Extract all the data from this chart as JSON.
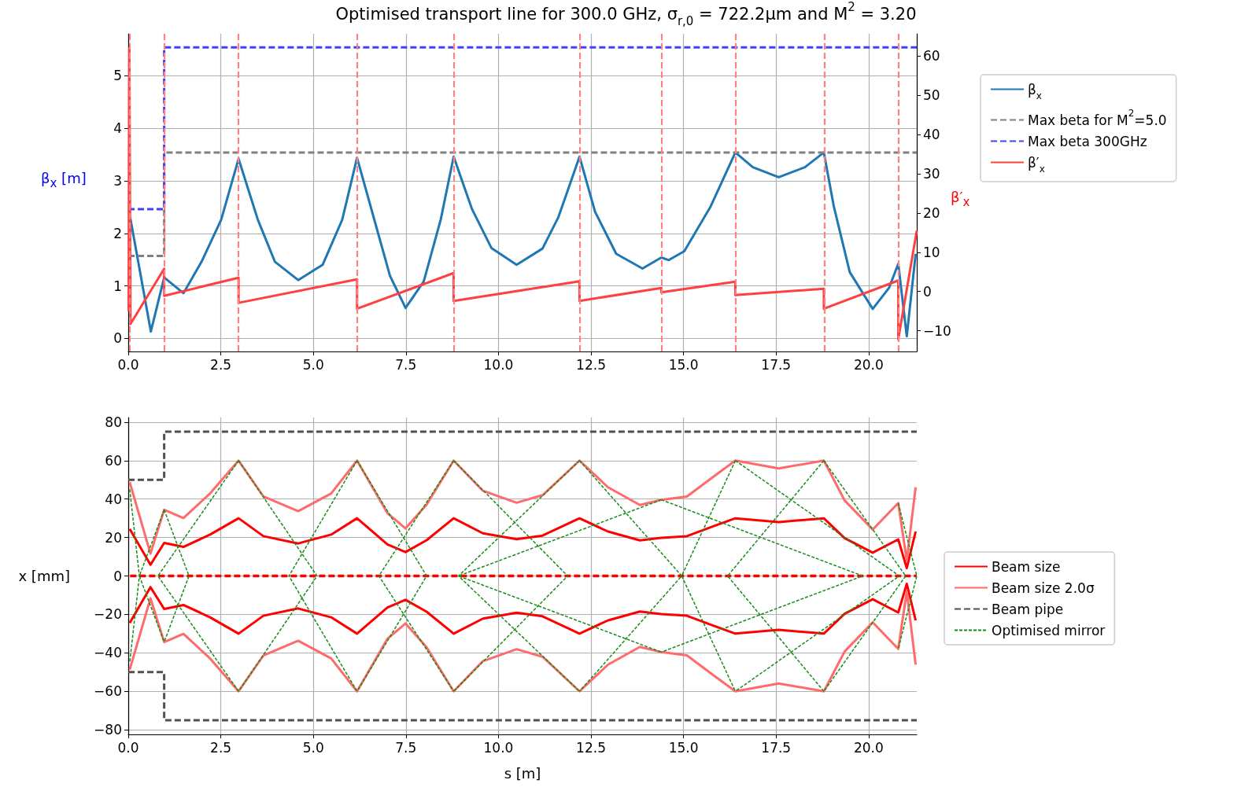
{
  "chart_data": [
    {
      "type": "line",
      "title": "Optimised transport line for 300.0 GHz, σ$_{r,0}$ = 722.2μm and M$^{2}$ = 3.20",
      "ylabel": "β$_{x}$ [m]",
      "y2label": "β′$_{x}$",
      "xlim": [
        0,
        21.3
      ],
      "xticks": [
        {
          "value": 0,
          "label": "0.0"
        },
        {
          "value": 2.5,
          "label": "2.5"
        },
        {
          "value": 5,
          "label": "5.0"
        },
        {
          "value": 7.5,
          "label": "7.5"
        },
        {
          "value": 10,
          "label": "10.0"
        },
        {
          "value": 12.5,
          "label": "12.5"
        },
        {
          "value": 15,
          "label": "15.0"
        },
        {
          "value": 17.5,
          "label": "17.5"
        },
        {
          "value": 20,
          "label": "20.0"
        }
      ],
      "ylim": [
        -0.25,
        5.8
      ],
      "yticks": [
        0,
        1,
        2,
        3,
        4,
        5
      ],
      "y2lim": [
        -15.3,
        65.7
      ],
      "y2ticks": [
        -10,
        0,
        10,
        20,
        30,
        40,
        50,
        60
      ],
      "grid": true,
      "legend": "right",
      "marker": "none",
      "series": [
        {
          "name": "β$_{x}$",
          "color": "#1f77b4",
          "line_style": "solid",
          "x": [
            0.05,
            0.61,
            0.97,
            1.49,
            1.98,
            2.51,
            2.98,
            3.5,
            3.96,
            4.59,
            5.25,
            5.78,
            6.18,
            6.69,
            7.07,
            7.49,
            7.98,
            8.44,
            8.79,
            9.28,
            9.81,
            10.49,
            11.19,
            11.62,
            12.19,
            12.61,
            13.18,
            13.89,
            14.4,
            14.6,
            15.02,
            15.73,
            16.4,
            16.87,
            17.57,
            18.28,
            18.79,
            19.06,
            19.49,
            20.11,
            20.55,
            20.8,
            21.03,
            21.27
          ],
          "values": [
            2.31,
            0.13,
            1.16,
            0.86,
            1.46,
            2.26,
            3.42,
            2.26,
            1.46,
            1.11,
            1.4,
            2.26,
            3.44,
            2.15,
            1.19,
            0.58,
            1.08,
            2.26,
            3.46,
            2.47,
            1.72,
            1.4,
            1.71,
            2.31,
            3.46,
            2.41,
            1.61,
            1.33,
            1.54,
            1.49,
            1.66,
            2.51,
            3.54,
            3.26,
            3.07,
            3.26,
            3.54,
            2.51,
            1.26,
            0.56,
            0.96,
            1.42,
            0.04,
            1.61
          ]
        },
        {
          "name": "Max beta for M$^{2}$=5.0",
          "color": "#808080",
          "line_style": "dashed",
          "x": [
            0,
            0.97,
            0.97,
            21.3
          ],
          "values": [
            1.57,
            1.57,
            3.54,
            3.54
          ]
        },
        {
          "name": "Max beta 300GHz",
          "color": "#4040ff",
          "line_style": "dashed",
          "x": [
            0,
            0.97,
            0.97,
            21.3
          ],
          "values": [
            2.46,
            2.46,
            5.54,
            5.54
          ]
        },
        {
          "name": "β′$_{x}$",
          "color": "#ff4040",
          "line_style": "solid",
          "axis": "y2",
          "x": [
            0.01,
            0.03,
            0.06,
            0.97,
            0.97,
            2.98,
            2.98,
            6.18,
            6.18,
            8.79,
            8.79,
            12.19,
            12.19,
            14.4,
            14.4,
            16.4,
            16.4,
            18.79,
            18.79,
            20.8,
            20.8,
            21.3
          ],
          "values": [
            -5,
            62,
            -8.3,
            5.8,
            -1.1,
            3.5,
            -2.9,
            3.1,
            -4.4,
            4.7,
            -2.4,
            2.6,
            -2.4,
            0.9,
            -0.2,
            2.5,
            -0.9,
            0.7,
            -4.4,
            2.8,
            -12.2,
            15.5
          ]
        }
      ],
      "ref_lines": [
        {
          "axis": "x",
          "value": 0.04,
          "color": "#ff8080",
          "line_style": "dashed"
        },
        {
          "axis": "x",
          "value": 0.97,
          "color": "#ff8080",
          "line_style": "dashed"
        },
        {
          "axis": "x",
          "value": 2.98,
          "color": "#ff8080",
          "line_style": "dashed"
        },
        {
          "axis": "x",
          "value": 6.18,
          "color": "#ff8080",
          "line_style": "dashed"
        },
        {
          "axis": "x",
          "value": 8.79,
          "color": "#ff8080",
          "line_style": "dashed"
        },
        {
          "axis": "x",
          "value": 12.19,
          "color": "#ff8080",
          "line_style": "dashed"
        },
        {
          "axis": "x",
          "value": 14.4,
          "color": "#ff8080",
          "line_style": "dashed"
        },
        {
          "axis": "x",
          "value": 16.4,
          "color": "#ff8080",
          "line_style": "dashed"
        },
        {
          "axis": "x",
          "value": 18.8,
          "color": "#ff8080",
          "line_style": "dashed"
        },
        {
          "axis": "x",
          "value": 20.8,
          "color": "#ff8080",
          "line_style": "dashed"
        }
      ]
    },
    {
      "type": "line",
      "xlabel": "s [m]",
      "ylabel": "x [mm]",
      "xlim": [
        0,
        21.3
      ],
      "xticks": [
        {
          "value": 0,
          "label": "0.0"
        },
        {
          "value": 2.5,
          "label": "2.5"
        },
        {
          "value": 5,
          "label": "5.0"
        },
        {
          "value": 7.5,
          "label": "7.5"
        },
        {
          "value": 10,
          "label": "10.0"
        },
        {
          "value": 12.5,
          "label": "12.5"
        },
        {
          "value": 15,
          "label": "15.0"
        },
        {
          "value": 17.5,
          "label": "17.5"
        },
        {
          "value": 20,
          "label": "20.0"
        }
      ],
      "ylim": [
        -82.4,
        82.4
      ],
      "yticks": [
        -80,
        -60,
        -40,
        -20,
        0,
        20,
        40,
        60,
        80
      ],
      "grid": true,
      "legend": "right",
      "marker": "none",
      "series": [
        {
          "name": "Beam size",
          "color": "#ff0000",
          "line_style": "solid",
          "x": [
            0.04,
            0.6,
            0.97,
            1.49,
            2.21,
            2.98,
            3.65,
            4.59,
            5.48,
            6.18,
            7.0,
            7.49,
            8.06,
            8.79,
            9.58,
            10.49,
            11.19,
            12.19,
            12.96,
            13.82,
            14.4,
            15.09,
            15.8,
            16.4,
            17.57,
            18.79,
            19.35,
            20.11,
            20.8,
            21.03,
            21.27
          ],
          "values": [
            24.4,
            5.8,
            17.2,
            15.1,
            21.5,
            30,
            20.7,
            16.9,
            21.5,
            30,
            16.4,
            12.4,
            18.6,
            30,
            22.2,
            19.1,
            21,
            30,
            23.1,
            18.5,
            19.8,
            20.7,
            25.8,
            30,
            28,
            30,
            19.7,
            12.1,
            19,
            4.1,
            23.1
          ]
        },
        {
          "color": "#ff0000",
          "line_style": "solid",
          "x": [
            0.04,
            0.6,
            0.97,
            1.49,
            2.21,
            2.98,
            3.65,
            4.59,
            5.48,
            6.18,
            7.0,
            7.49,
            8.06,
            8.79,
            9.58,
            10.49,
            11.19,
            12.19,
            12.96,
            13.82,
            14.4,
            15.09,
            15.8,
            16.4,
            17.57,
            18.79,
            19.35,
            20.11,
            20.8,
            21.03,
            21.27
          ],
          "values": [
            -24.4,
            -5.8,
            -17.2,
            -15.1,
            -21.5,
            -30,
            -20.7,
            -16.9,
            -21.5,
            -30,
            -16.4,
            -12.4,
            -18.6,
            -30,
            -22.2,
            -19.1,
            -21,
            -30,
            -23.1,
            -18.5,
            -19.8,
            -20.7,
            -25.8,
            -30,
            -28,
            -30,
            -19.7,
            -12.1,
            -19,
            -4.1,
            -23.1
          ]
        },
        {
          "color": "#ff0000",
          "line_style": "dashed",
          "x": [
            0.05,
            21.3
          ],
          "values": [
            0,
            0
          ]
        },
        {
          "name": "Beam size 2.0σ",
          "color": "#ff6b6b",
          "line_style": "solid",
          "x": [
            0.04,
            0.6,
            0.97,
            1.49,
            2.21,
            2.98,
            3.65,
            4.59,
            5.48,
            6.18,
            7.0,
            7.49,
            8.06,
            8.79,
            9.58,
            10.49,
            11.19,
            12.19,
            12.96,
            13.82,
            14.4,
            15.09,
            15.8,
            16.4,
            17.57,
            18.79,
            19.35,
            20.11,
            20.8,
            21.03,
            21.27
          ],
          "values": [
            48.7,
            11.6,
            34.4,
            30.1,
            42.9,
            60,
            41.4,
            33.7,
            42.9,
            60,
            32.7,
            24.7,
            37.1,
            60,
            44.3,
            38.1,
            42,
            60,
            46.1,
            36.9,
            39.6,
            41.3,
            51.5,
            60,
            55.9,
            60,
            39.3,
            24.1,
            37.9,
            8.1,
            46.1
          ]
        },
        {
          "color": "#ff6b6b",
          "line_style": "solid",
          "x": [
            0.04,
            0.6,
            0.97,
            1.49,
            2.21,
            2.98,
            3.65,
            4.59,
            5.48,
            6.18,
            7.0,
            7.49,
            8.06,
            8.79,
            9.58,
            10.49,
            11.19,
            12.19,
            12.96,
            13.82,
            14.4,
            15.09,
            15.8,
            16.4,
            17.57,
            18.79,
            19.35,
            20.11,
            20.8,
            21.03,
            21.27
          ],
          "values": [
            -48.7,
            -11.6,
            -34.4,
            -30.1,
            -42.9,
            -60,
            -41.4,
            -33.7,
            -42.9,
            -60,
            -32.7,
            -24.7,
            -37.1,
            -60,
            -44.3,
            -38.1,
            -42,
            -60,
            -46.1,
            -36.9,
            -39.6,
            -41.3,
            -51.5,
            -60,
            -55.9,
            -60,
            -39.3,
            -24.1,
            -37.9,
            -8.1,
            -46.1
          ]
        },
        {
          "name": "Beam pipe",
          "color": "#505050",
          "line_style": "dashed",
          "x": [
            0,
            0.97,
            0.97,
            21.3
          ],
          "values": [
            50,
            50,
            75,
            75
          ]
        },
        {
          "color": "#505050",
          "line_style": "dashed",
          "x": [
            0,
            0.97,
            0.97,
            21.3
          ],
          "values": [
            -50,
            -50,
            -75,
            -75
          ]
        },
        {
          "name": "Optimised mirror",
          "color": "#1a8a1a",
          "line_style": "dashed",
          "x": [
            0.04,
            0.3,
            0.04
          ],
          "values": [
            45,
            0,
            -45
          ]
        },
        {
          "color": "#1a8a1a",
          "line_style": "dashed",
          "x": [
            0.97,
            0.3,
            0.97
          ],
          "values": [
            34.4,
            0,
            -34.4
          ]
        },
        {
          "color": "#1a8a1a",
          "line_style": "dashed",
          "x": [
            0.97,
            1.64,
            0.97
          ],
          "values": [
            34.4,
            0,
            -34.4
          ]
        },
        {
          "color": "#1a8a1a",
          "line_style": "dashed",
          "x": [
            2.98,
            0.8,
            2.98
          ],
          "values": [
            60,
            0,
            -60
          ]
        },
        {
          "color": "#1a8a1a",
          "line_style": "dashed",
          "x": [
            2.98,
            5.1,
            2.98
          ],
          "values": [
            60,
            0,
            -60
          ]
        },
        {
          "color": "#1a8a1a",
          "line_style": "dashed",
          "x": [
            6.18,
            4.34,
            6.18
          ],
          "values": [
            60,
            0,
            -60
          ]
        },
        {
          "color": "#1a8a1a",
          "line_style": "dashed",
          "x": [
            6.18,
            8.06,
            6.18
          ],
          "values": [
            60,
            0,
            -60
          ]
        },
        {
          "color": "#1a8a1a",
          "line_style": "dashed",
          "x": [
            8.79,
            6.77,
            8.79
          ],
          "values": [
            60,
            0,
            -60
          ]
        },
        {
          "color": "#1a8a1a",
          "line_style": "dashed",
          "x": [
            8.79,
            11.87,
            8.79
          ],
          "values": [
            60,
            0,
            -60
          ]
        },
        {
          "color": "#1a8a1a",
          "line_style": "dashed",
          "x": [
            12.19,
            8.92,
            12.19
          ],
          "values": [
            60,
            0,
            -60
          ]
        },
        {
          "color": "#1a8a1a",
          "line_style": "dashed",
          "x": [
            14.4,
            8.92,
            14.4
          ],
          "values": [
            39.6,
            0,
            -39.6
          ]
        },
        {
          "color": "#1a8a1a",
          "line_style": "dashed",
          "x": [
            12.19,
            14.95,
            12.19
          ],
          "values": [
            60,
            0,
            -60
          ]
        },
        {
          "color": "#1a8a1a",
          "line_style": "dashed",
          "x": [
            16.4,
            14.95,
            16.4
          ],
          "values": [
            60,
            0,
            -60
          ]
        },
        {
          "color": "#1a8a1a",
          "line_style": "dashed",
          "x": [
            14.4,
            19.84,
            14.4
          ],
          "values": [
            39.6,
            0,
            -39.6
          ]
        },
        {
          "color": "#1a8a1a",
          "line_style": "dashed",
          "x": [
            18.79,
            16.19,
            18.79
          ],
          "values": [
            60,
            0,
            -60
          ]
        },
        {
          "color": "#1a8a1a",
          "line_style": "dashed",
          "x": [
            16.4,
            20.83,
            16.4
          ],
          "values": [
            60,
            0,
            -60
          ]
        },
        {
          "color": "#1a8a1a",
          "line_style": "dashed",
          "x": [
            18.79,
            21.0,
            18.79
          ],
          "values": [
            60,
            0,
            -60
          ]
        },
        {
          "color": "#1a8a1a",
          "line_style": "dashed",
          "x": [
            20.8,
            21.3,
            20.8
          ],
          "values": [
            37.9,
            0,
            -37.9
          ]
        }
      ]
    }
  ]
}
